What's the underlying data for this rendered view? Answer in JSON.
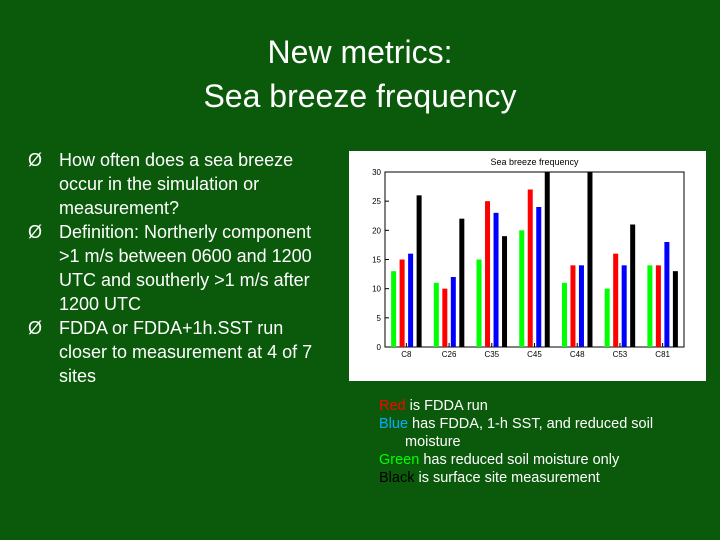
{
  "slide": {
    "title_line1": "New metrics:",
    "title_line2": "Sea breeze frequency",
    "bullet_marker": "Ø",
    "bullets": [
      "How often does a sea breeze occur in the simulation or measurement?",
      "Definition:  Northerly component >1 m/s between 0600 and 1200 UTC and southerly >1 m/s after 1200 UTC",
      "FDDA or FDDA+1h.SST run closer to measurement at 4 of 7 sites"
    ],
    "legend": {
      "red_word": "Red",
      "red_rest": " is FDDA run",
      "blue_word": "Blue",
      "blue_rest": " has FDDA, 1-h SST, and reduced soil",
      "blue_cont": "moisture",
      "green_word": "Green",
      "green_rest": " has reduced soil moisture only",
      "black_word": "Black",
      "black_rest": " is surface site measurement"
    },
    "colors": {
      "background": "#0b5a0b",
      "red": "#ff0000",
      "blue": "#0000ff",
      "green": "#00ff00",
      "black": "#000000"
    }
  },
  "chart_data": {
    "type": "bar",
    "title": "Sea breeze frequency",
    "categories": [
      "C8",
      "C26",
      "C35",
      "C45",
      "C48",
      "C53",
      "C81"
    ],
    "ylim": [
      0,
      30
    ],
    "yticks": [
      0,
      5,
      10,
      15,
      20,
      25,
      30
    ],
    "series": [
      {
        "color": "#00ff00",
        "values": [
          13,
          11,
          15,
          20,
          11,
          10,
          14
        ]
      },
      {
        "color": "#ff0000",
        "values": [
          15,
          10,
          25,
          27,
          14,
          16,
          14
        ]
      },
      {
        "color": "#0000ff",
        "values": [
          16,
          12,
          23,
          24,
          14,
          14,
          18
        ]
      },
      {
        "color": "#000000",
        "values": [
          26,
          22,
          19,
          30,
          30,
          21,
          13
        ]
      }
    ]
  }
}
